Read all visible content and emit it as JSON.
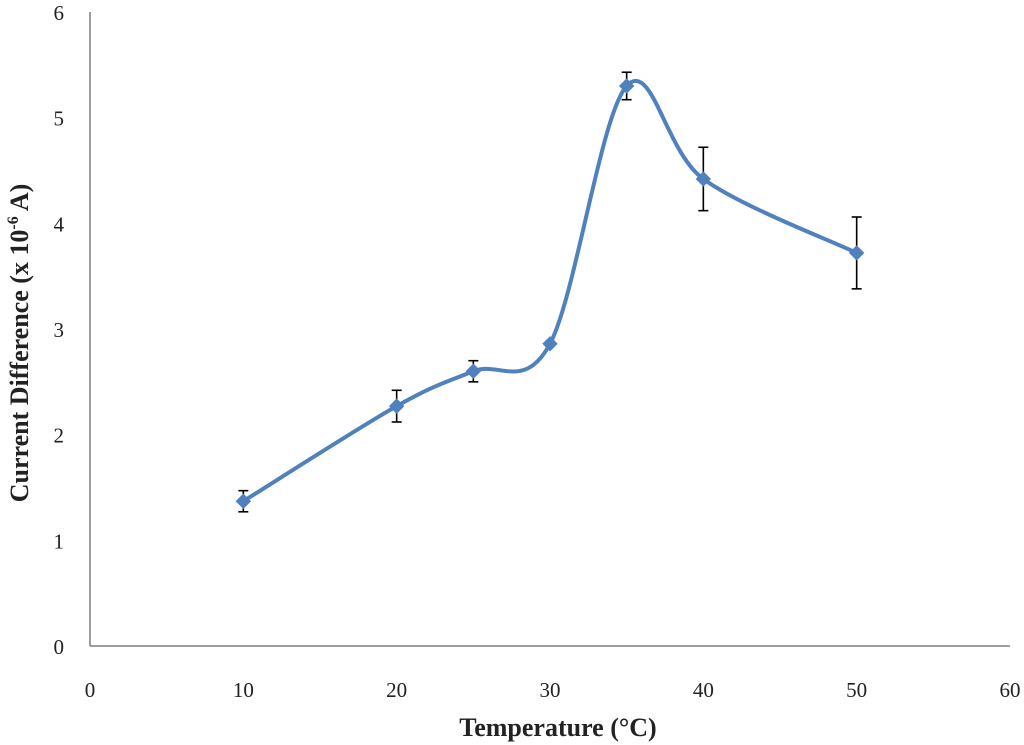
{
  "chart_data": {
    "type": "line",
    "title": "",
    "xlabel": "Temperature (°C)",
    "ylabel_main": "Current Difference (x 10",
    "ylabel_sup": "-6",
    "ylabel_tail": " A)",
    "xlim": [
      0,
      60
    ],
    "ylim": [
      0,
      6
    ],
    "xticks": [
      0,
      10,
      20,
      30,
      40,
      50,
      60
    ],
    "yticks": [
      0,
      1,
      2,
      3,
      4,
      5,
      6
    ],
    "grid": false,
    "legend": "none",
    "smooth": true,
    "series": [
      {
        "color": "#4F81BD",
        "marker": "diamond",
        "points": [
          {
            "x": 10,
            "y": 1.37,
            "err": 0.1
          },
          {
            "x": 20,
            "y": 2.27,
            "err": 0.15
          },
          {
            "x": 25,
            "y": 2.6,
            "err": 0.1
          },
          {
            "x": 30,
            "y": 2.86,
            "err": 0
          },
          {
            "x": 35,
            "y": 5.3,
            "err": 0.13
          },
          {
            "x": 40,
            "y": 4.42,
            "err": 0.3
          },
          {
            "x": 50,
            "y": 3.72,
            "err": 0.34
          }
        ]
      }
    ]
  }
}
